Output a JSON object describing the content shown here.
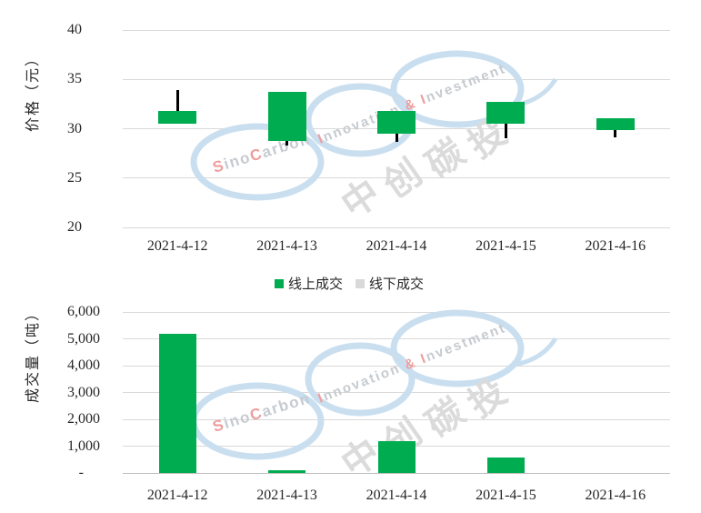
{
  "watermark": {
    "brand_text": "SinoCarbon",
    "slogan_text": "Innovation & Investment",
    "cn_text": "中创碳投",
    "ring_color": "#C9DFF0",
    "text_gray": "#C6CBD0",
    "text_red": "#F09C9C",
    "cn_color": "#DBDBDB"
  },
  "legend": {
    "items": [
      {
        "label": "线上成交",
        "color": "#00AC50"
      },
      {
        "label": "线下成交",
        "color": "#D9D9D9"
      }
    ]
  },
  "colors": {
    "candle_green": "#00AC50",
    "bar_green": "#00AC50",
    "grid": "#D9D9D9",
    "axis_line": "#BFBFBF",
    "wick": "#000000",
    "text": "#262626"
  },
  "chart_data": [
    {
      "type": "candlestick",
      "title": "",
      "ylabel": "价格（元）",
      "xlabel": "",
      "categories": [
        "2021-4-12",
        "2021-4-13",
        "2021-4-14",
        "2021-4-15",
        "2021-4-16"
      ],
      "ylim": [
        20,
        40
      ],
      "yticks": [
        20,
        25,
        30,
        35,
        40
      ],
      "grid": true,
      "legend_position": "below",
      "series": [
        {
          "name": "线上成交",
          "ohlc": [
            {
              "date": "2021-4-12",
              "open": 30.5,
              "high": 33.9,
              "low": 30.5,
              "close": 31.8
            },
            {
              "date": "2021-4-13",
              "open": 28.8,
              "high": 33.7,
              "low": 28.3,
              "close": 33.7
            },
            {
              "date": "2021-4-14",
              "open": 29.5,
              "high": 31.8,
              "low": 28.7,
              "close": 31.8
            },
            {
              "date": "2021-4-15",
              "open": 30.5,
              "high": 32.7,
              "low": 29.0,
              "close": 32.7
            },
            {
              "date": "2021-4-16",
              "open": 29.9,
              "high": 31.1,
              "low": 29.1,
              "close": 31.1
            }
          ]
        }
      ]
    },
    {
      "type": "bar",
      "title": "",
      "ylabel": "成交量（吨）",
      "xlabel": "",
      "categories": [
        "2021-4-12",
        "2021-4-13",
        "2021-4-14",
        "2021-4-15",
        "2021-4-16"
      ],
      "ylim": [
        0,
        6000
      ],
      "ytick_labels": [
        "-",
        "1,000",
        "2,000",
        "3,000",
        "4,000",
        "5,000",
        "6,000"
      ],
      "grid": true,
      "series": [
        {
          "name": "线上成交",
          "values": [
            5200,
            90,
            1190,
            590,
            0
          ]
        },
        {
          "name": "线下成交",
          "values": [
            0,
            0,
            0,
            0,
            0
          ]
        }
      ]
    }
  ]
}
